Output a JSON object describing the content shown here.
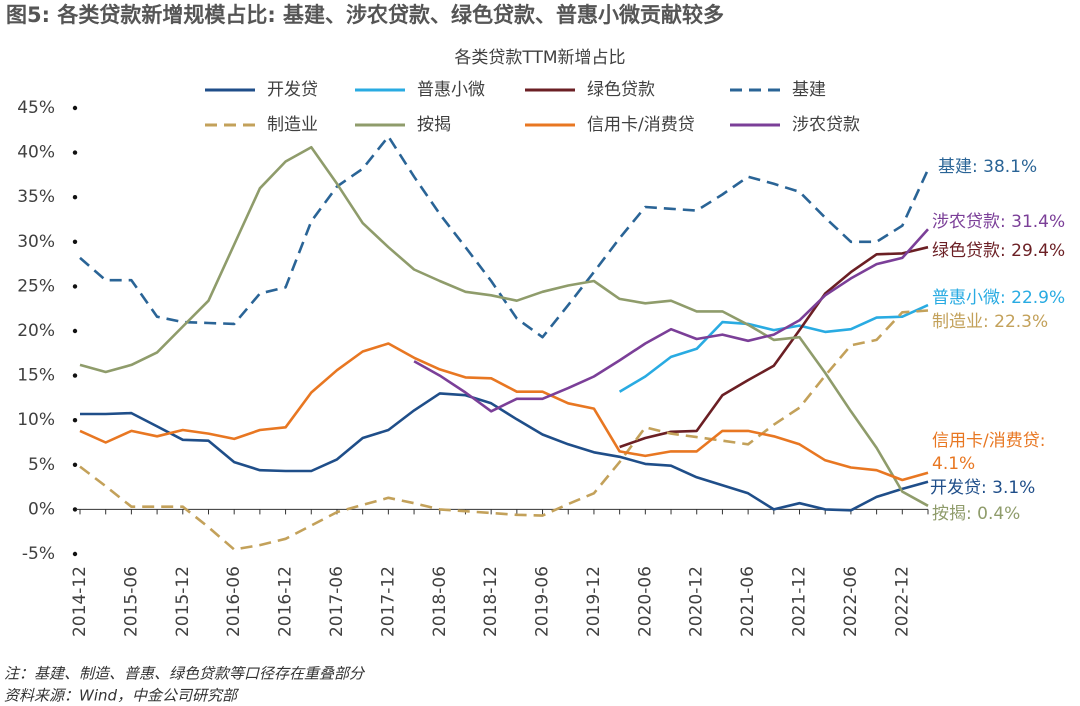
{
  "chart_data": {
    "type": "line",
    "title": "图5: 各类贷款新增规模占比: 基建、涉农贷款、绿色贷款、普惠小微贡献较多",
    "subtitle": "各类贷款TTM新增占比",
    "categories": [
      "2014-12",
      null,
      "2015-06",
      null,
      "2015-12",
      null,
      "2016-06",
      null,
      "2016-12",
      null,
      "2017-06",
      null,
      "2017-12",
      null,
      "2018-06",
      null,
      "2018-12",
      null,
      "2019-06",
      null,
      "2019-12",
      null,
      "2020-06",
      null,
      "2020-12",
      null,
      "2021-06",
      null,
      "2021-12",
      null,
      "2022-06",
      null,
      "2022-12",
      null
    ],
    "ylim": [
      -5,
      45
    ],
    "yticks": [
      {
        "value": -5,
        "label": "-5%"
      },
      {
        "value": 0,
        "label": "0%"
      },
      {
        "value": 5,
        "label": "5%"
      },
      {
        "value": 10,
        "label": "10%"
      },
      {
        "value": 15,
        "label": "15%"
      },
      {
        "value": 20,
        "label": "20%"
      },
      {
        "value": 25,
        "label": "25%"
      },
      {
        "value": 30,
        "label": "30%"
      },
      {
        "value": 35,
        "label": "35%"
      },
      {
        "value": 40,
        "label": "40%"
      },
      {
        "value": 45,
        "label": "45%"
      }
    ],
    "grid": false,
    "series": [
      {
        "name": "开发贷",
        "color": "#1f4e89",
        "dashed": false,
        "end_label": "开发贷: 3.1%",
        "values": [
          10.7,
          10.7,
          10.8,
          9.3,
          7.8,
          7.7,
          5.3,
          4.4,
          4.3,
          4.3,
          5.6,
          8.0,
          8.9,
          11.1,
          13.0,
          12.8,
          11.9,
          10.1,
          8.4,
          7.3,
          6.4,
          5.9,
          5.1,
          4.9,
          3.6,
          2.7,
          1.8,
          0.0,
          0.7,
          0.0,
          -0.1,
          1.4,
          2.3,
          3.1
        ]
      },
      {
        "name": "普惠小微",
        "color": "#29abe2",
        "dashed": false,
        "end_label": "普惠小微: 22.9%",
        "values": [
          null,
          null,
          null,
          null,
          null,
          null,
          null,
          null,
          null,
          null,
          null,
          null,
          null,
          null,
          null,
          null,
          null,
          null,
          null,
          null,
          null,
          13.2,
          14.9,
          17.1,
          18.0,
          21.0,
          20.8,
          20.1,
          20.6,
          19.9,
          20.2,
          21.5,
          21.6,
          22.9
        ]
      },
      {
        "name": "绿色贷款",
        "color": "#6b1f24",
        "dashed": false,
        "end_label": "绿色贷款: 29.4%",
        "values": [
          null,
          null,
          null,
          null,
          null,
          null,
          null,
          null,
          null,
          null,
          null,
          null,
          null,
          null,
          null,
          null,
          null,
          null,
          null,
          null,
          null,
          7.0,
          8.0,
          8.7,
          8.8,
          12.8,
          14.5,
          16.1,
          20.1,
          24.2,
          26.6,
          28.6,
          28.7,
          29.4
        ]
      },
      {
        "name": "基建",
        "color": "#2a6496",
        "dashed": true,
        "end_label": "基建: 38.1%",
        "values": [
          28.2,
          25.7,
          25.7,
          21.6,
          21.0,
          20.9,
          20.8,
          24.2,
          24.9,
          32.3,
          36.2,
          38.2,
          41.8,
          37.3,
          33.1,
          29.4,
          25.6,
          21.4,
          19.3,
          22.9,
          26.6,
          30.4,
          33.9,
          33.7,
          33.5,
          35.3,
          37.3,
          36.5,
          35.6,
          32.7,
          30.0,
          30.0,
          31.8,
          38.1
        ]
      },
      {
        "name": "制造业",
        "color": "#c3a15a",
        "dashed": true,
        "end_label": "制造业: 22.3%",
        "values": [
          4.8,
          2.6,
          0.3,
          0.3,
          0.3,
          -2.0,
          -4.5,
          -4.0,
          -3.3,
          -1.8,
          -0.3,
          0.5,
          1.3,
          0.7,
          0.0,
          -0.2,
          -0.4,
          -0.6,
          -0.7,
          0.6,
          1.8,
          5.3,
          9.2,
          8.5,
          8.1,
          7.7,
          7.3,
          9.5,
          11.4,
          15.0,
          18.4,
          19.0,
          22.1,
          22.3
        ]
      },
      {
        "name": "按揭",
        "color": "#8f9c6b",
        "dashed": false,
        "end_label": "按揭: 0.4%",
        "values": [
          16.2,
          15.4,
          16.2,
          17.6,
          20.5,
          23.4,
          29.7,
          36.0,
          39.0,
          40.6,
          36.5,
          32.1,
          29.4,
          26.9,
          25.6,
          24.4,
          24.0,
          23.4,
          24.4,
          25.1,
          25.6,
          23.6,
          23.1,
          23.4,
          22.2,
          22.2,
          20.7,
          19.0,
          19.3,
          15.3,
          11.0,
          6.9,
          2.0,
          0.4
        ]
      },
      {
        "name": "信用卡/消费贷",
        "color": "#e87722",
        "dashed": false,
        "end_label": [
          "信用卡/消费贷:",
          "4.1%"
        ],
        "values": [
          8.8,
          7.5,
          8.8,
          8.2,
          8.9,
          8.5,
          7.9,
          8.9,
          9.2,
          13.1,
          15.6,
          17.7,
          18.6,
          17.0,
          15.7,
          14.8,
          14.7,
          13.2,
          13.2,
          11.9,
          11.3,
          6.5,
          6.0,
          6.5,
          6.5,
          8.8,
          8.8,
          8.2,
          7.3,
          5.5,
          4.7,
          4.4,
          3.3,
          4.1
        ]
      },
      {
        "name": "涉农贷款",
        "color": "#7b3f98",
        "dashed": false,
        "end_label": "涉农贷款: 31.4%",
        "values": [
          null,
          null,
          null,
          null,
          null,
          null,
          null,
          null,
          null,
          null,
          null,
          null,
          null,
          16.6,
          15.0,
          13.1,
          11.0,
          12.4,
          12.4,
          13.6,
          14.9,
          16.7,
          18.6,
          20.2,
          19.1,
          19.6,
          18.9,
          19.6,
          21.2,
          24.0,
          25.9,
          27.5,
          28.2,
          31.4
        ]
      }
    ],
    "notes": [
      "注：基建、制造、普惠、绿色贷款等口径存在重叠部分",
      "资料来源：Wind，中金公司研究部"
    ]
  }
}
